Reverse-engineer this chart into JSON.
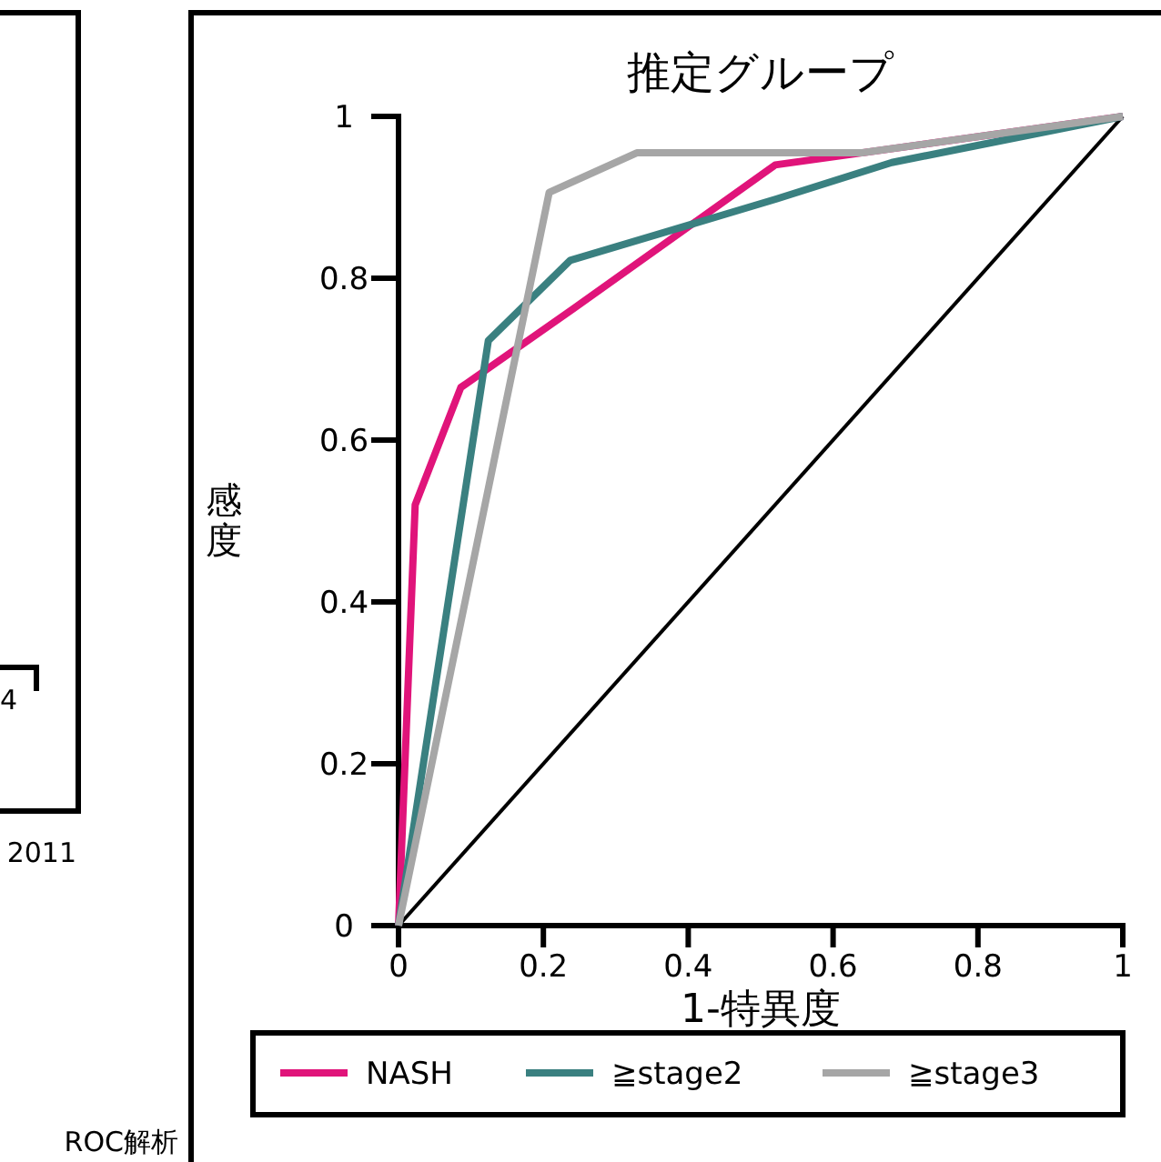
{
  "chart_data": {
    "type": "line",
    "title": "推定グループ",
    "xlabel": "1-特異度",
    "ylabel": "感度",
    "xlim": [
      0,
      1
    ],
    "ylim": [
      0,
      1
    ],
    "xticks": [
      0,
      0.2,
      0.4,
      0.6,
      0.8,
      1
    ],
    "yticks": [
      0,
      0.2,
      0.4,
      0.6,
      0.8,
      1
    ],
    "legend": "bottom",
    "series": [
      {
        "name": "NASH",
        "color": "#e0147a",
        "x": [
          0,
          0.023,
          0.086,
          0.241,
          0.52,
          1
        ],
        "values": [
          0,
          0.52,
          0.665,
          0.762,
          0.94,
          1
        ]
      },
      {
        "name": "≧stage2",
        "color": "#3a8080",
        "x": [
          0,
          0.124,
          0.237,
          0.522,
          0.681,
          1
        ],
        "values": [
          0,
          0.723,
          0.822,
          0.898,
          0.943,
          1
        ]
      },
      {
        "name": "≧stage3",
        "color": "#a6a6a6",
        "x": [
          0,
          0.208,
          0.329,
          0.64,
          1
        ],
        "values": [
          0,
          0.906,
          0.955,
          0.955,
          1
        ]
      },
      {
        "color": "#000000",
        "x": [
          0,
          1
        ],
        "values": [
          0,
          1
        ]
      }
    ],
    "annotations": [
      "4",
      "2011",
      "ROC解析"
    ]
  }
}
